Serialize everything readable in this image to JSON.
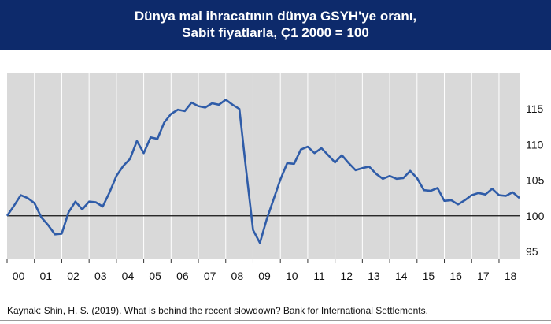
{
  "title": {
    "line1": "Dünya mal ihracatının dünya GSYH'ye oranı,",
    "line2": "Sabit fiyatlarla, Ç1 2000 = 100"
  },
  "source": "Kaynak: Shin, H. S. (2019). What is behind the recent slowdown? Bank for International Settlements.",
  "colors": {
    "header_bg": "#0d2a6b",
    "line": "#2f5ca8",
    "plot_bg": "#d9d9d9",
    "grid": "#ffffff"
  },
  "chart_data": {
    "type": "line",
    "title": "Dünya mal ihracatının dünya GSYH'ye oranı, Sabit fiyatlarla, Ç1 2000 = 100",
    "xlabel": "",
    "ylabel": "",
    "ylim": [
      94,
      120
    ],
    "xlim": [
      2000.0,
      2018.75
    ],
    "yticks": [
      95,
      100,
      105,
      110,
      115
    ],
    "reference_line": 100,
    "xtick_labels": [
      "00",
      "01",
      "02",
      "03",
      "04",
      "05",
      "06",
      "07",
      "08",
      "09",
      "10",
      "11",
      "12",
      "13",
      "14",
      "15",
      "16",
      "17",
      "18"
    ],
    "grid": "vertical",
    "legend": "none",
    "series": [
      {
        "x": [
          2000.0,
          2000.25,
          2000.5,
          2000.75,
          2001.0,
          2001.25,
          2001.5,
          2001.75,
          2002.0,
          2002.25,
          2002.5,
          2002.75,
          2003.0,
          2003.25,
          2003.5,
          2003.75,
          2004.0,
          2004.25,
          2004.5,
          2004.75,
          2005.0,
          2005.25,
          2005.5,
          2005.75,
          2006.0,
          2006.25,
          2006.5,
          2006.75,
          2007.0,
          2007.25,
          2007.5,
          2007.75,
          2008.0,
          2008.25,
          2008.5,
          2008.75,
          2009.0,
          2009.25,
          2009.5,
          2009.75,
          2010.0,
          2010.25,
          2010.5,
          2010.75,
          2011.0,
          2011.25,
          2011.5,
          2011.75,
          2012.0,
          2012.25,
          2012.5,
          2012.75,
          2013.0,
          2013.25,
          2013.5,
          2013.75,
          2014.0,
          2014.25,
          2014.5,
          2014.75,
          2015.0,
          2015.25,
          2015.5,
          2015.75,
          2016.0,
          2016.25,
          2016.5,
          2016.75,
          2017.0,
          2017.25,
          2017.5,
          2017.75,
          2018.0,
          2018.25,
          2018.5,
          2018.75
        ],
        "y": [
          100.0,
          101.4,
          102.9,
          102.5,
          101.8,
          99.8,
          98.7,
          97.4,
          97.5,
          100.5,
          102.0,
          100.9,
          102.0,
          101.9,
          101.3,
          103.3,
          105.6,
          107.0,
          108.0,
          110.5,
          108.8,
          111.0,
          110.8,
          113.1,
          114.3,
          114.9,
          114.7,
          115.9,
          115.4,
          115.2,
          115.8,
          115.6,
          116.3,
          115.6,
          115.0,
          106.3,
          98.0,
          96.2,
          99.5,
          102.3,
          105.1,
          107.4,
          107.3,
          109.3,
          109.7,
          108.8,
          109.5,
          108.5,
          107.5,
          108.5,
          107.4,
          106.4,
          106.7,
          106.9,
          105.9,
          105.2,
          105.6,
          105.2,
          105.3,
          106.3,
          105.3,
          103.6,
          103.5,
          103.9,
          102.1,
          102.2,
          101.6,
          102.2,
          102.9,
          103.2,
          103.0,
          103.8,
          102.9,
          102.8,
          103.3,
          102.5
        ]
      }
    ]
  }
}
